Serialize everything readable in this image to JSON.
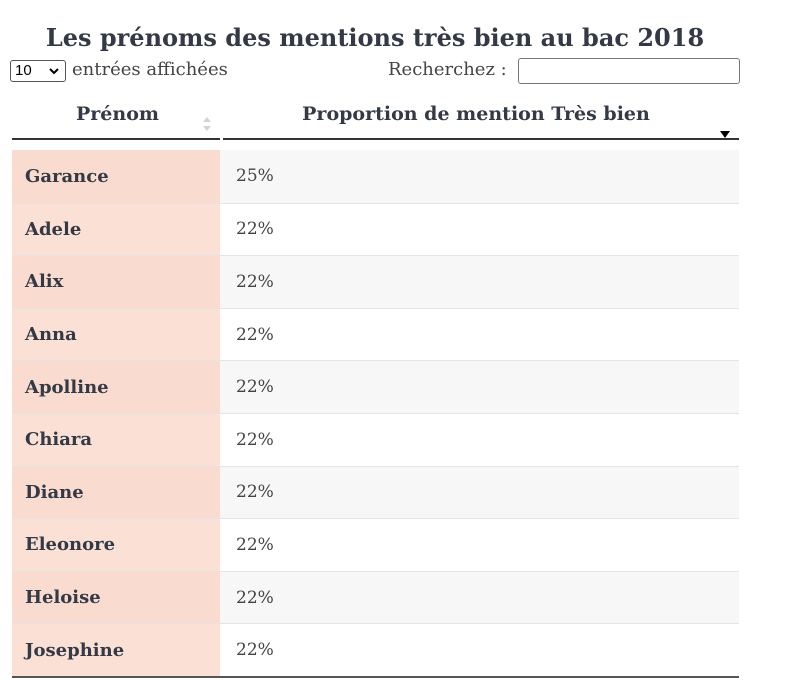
{
  "title": "Les prénoms des mentions très bien au bac 2018",
  "controls": {
    "length_value": "10",
    "length_label": "entrées affichées",
    "search_label": "Recherchez :",
    "search_value": ""
  },
  "table": {
    "columns": [
      "Prénom",
      "Proportion de mention Très bien"
    ],
    "rows": [
      {
        "name": "Garance",
        "proportion": "25%"
      },
      {
        "name": "Adele",
        "proportion": "22%"
      },
      {
        "name": "Alix",
        "proportion": "22%"
      },
      {
        "name": "Anna",
        "proportion": "22%"
      },
      {
        "name": "Apolline",
        "proportion": "22%"
      },
      {
        "name": "Chiara",
        "proportion": "22%"
      },
      {
        "name": "Diane",
        "proportion": "22%"
      },
      {
        "name": "Eleonore",
        "proportion": "22%"
      },
      {
        "name": "Heloise",
        "proportion": "22%"
      },
      {
        "name": "Josephine",
        "proportion": "22%"
      }
    ]
  }
}
